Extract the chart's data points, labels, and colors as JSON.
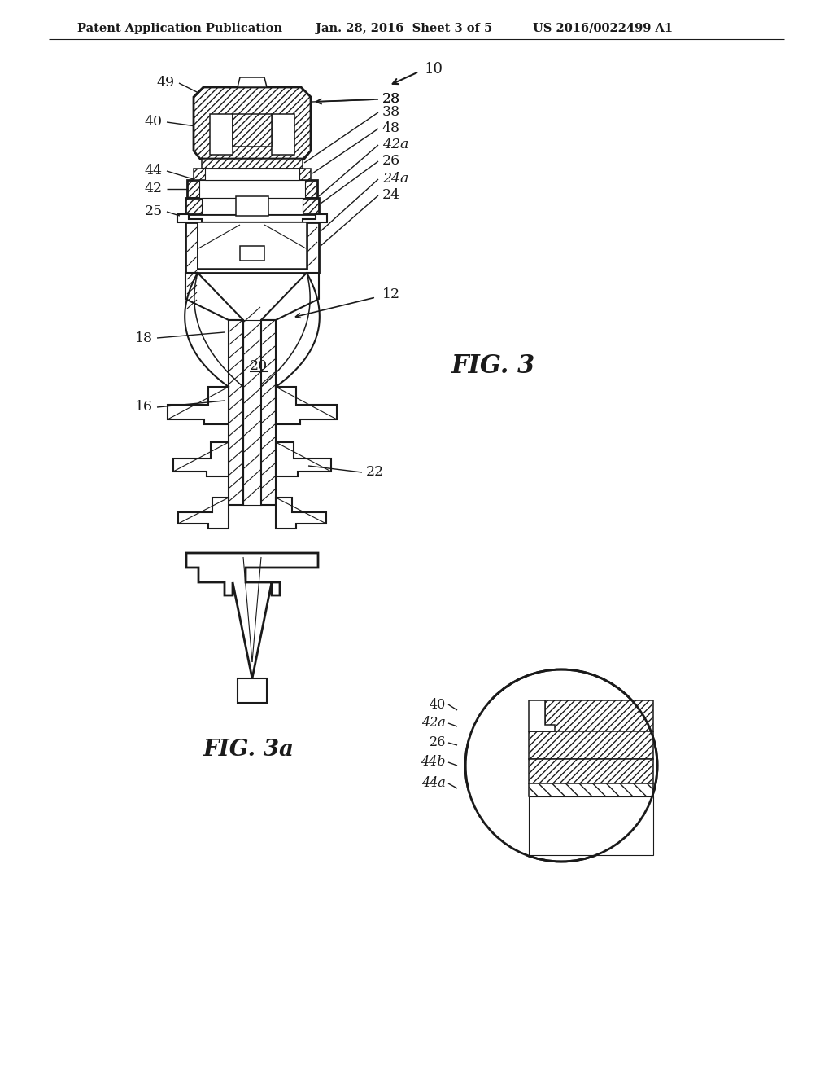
{
  "background_color": "#ffffff",
  "line_color": "#1a1a1a",
  "header_text": "Patent Application Publication",
  "header_date": "Jan. 28, 2016  Sheet 3 of 5",
  "header_patent": "US 2016/0022499 A1",
  "fig3_label": "FIG. 3",
  "fig3a_label": "FIG. 3a"
}
